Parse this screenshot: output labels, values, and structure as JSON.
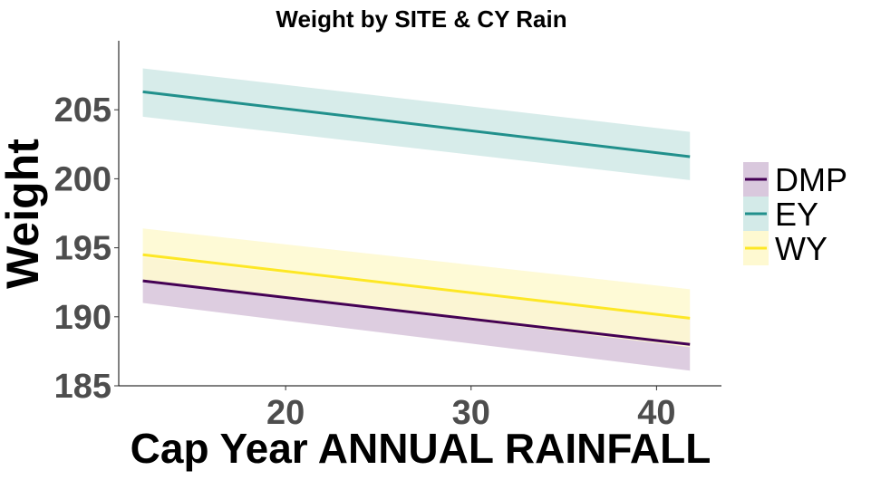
{
  "chart_data": {
    "type": "line",
    "title": "Weight by SITE & CY Rain",
    "xlabel": "Cap Year ANNUAL RAINFALL",
    "ylabel": "Weight",
    "xlim": [
      11,
      43.5
    ],
    "ylim": [
      185,
      210
    ],
    "xticks": [
      20,
      30,
      40
    ],
    "yticks": [
      185,
      190,
      195,
      200,
      205
    ],
    "grid": false,
    "legend_position": "right",
    "series": [
      {
        "name": "DMP",
        "color": "#440154",
        "ribbon_color": "#d9c8dd",
        "x": [
          12.3,
          41.8
        ],
        "y": [
          192.6,
          188.0
        ],
        "lower": [
          191.0,
          186.1
        ],
        "upper": [
          194.3,
          189.9
        ]
      },
      {
        "name": "EY",
        "color": "#21908C",
        "ribbon_color": "#d3eae8",
        "x": [
          12.3,
          41.8
        ],
        "y": [
          206.3,
          201.6
        ],
        "lower": [
          204.5,
          199.9
        ],
        "upper": [
          208.0,
          203.4
        ]
      },
      {
        "name": "WY",
        "color": "#FDE725",
        "ribbon_color": "#fef9d1",
        "x": [
          12.3,
          41.8
        ],
        "y": [
          194.5,
          189.9
        ],
        "lower": [
          192.6,
          187.8
        ],
        "upper": [
          196.4,
          192.0
        ]
      }
    ]
  }
}
